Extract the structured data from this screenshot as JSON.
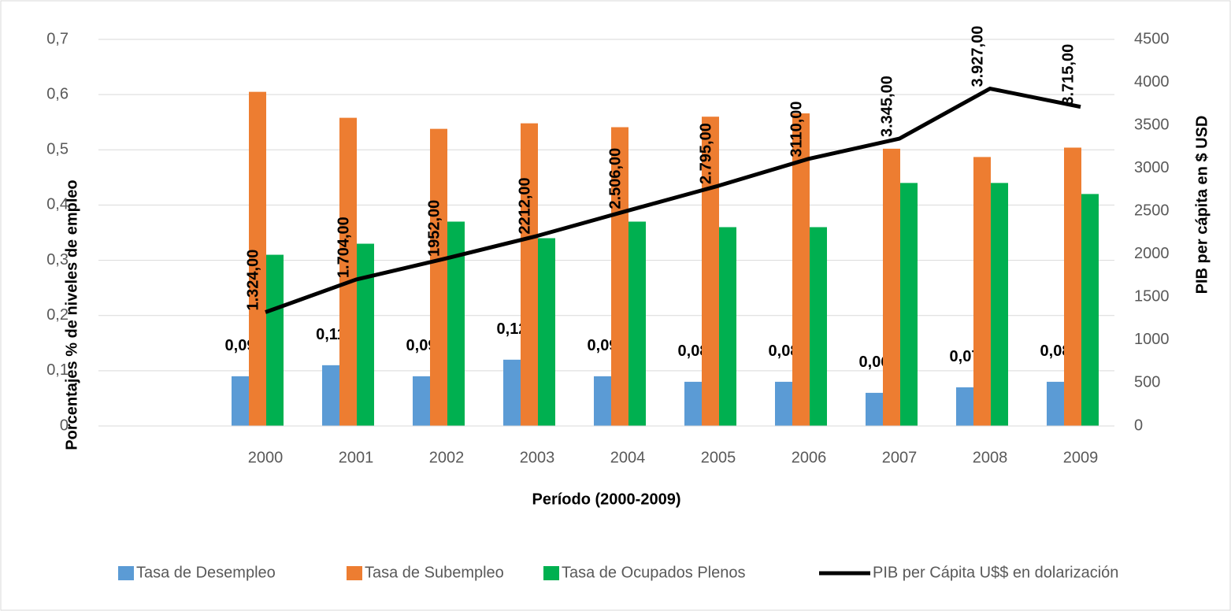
{
  "chart_data": {
    "type": "bar",
    "categories": [
      null,
      "2000",
      "2001",
      "2002",
      "2003",
      "2004",
      "2005",
      "2006",
      "2007",
      "2008",
      "2009"
    ],
    "xlabel": "Período (2000-2009)",
    "ylabel": "Porcentajes % de niveles de empleo",
    "y2label": "PIB per cápita en $ USD",
    "ylim": [
      0,
      0.7
    ],
    "yticks": [
      0,
      {
        "value": 0.1,
        "label": "0,1"
      },
      {
        "value": 0.2,
        "label": "0,2"
      },
      {
        "value": 0.3,
        "label": "0,3"
      },
      {
        "value": 0.4,
        "label": "0,4"
      },
      {
        "value": 0.5,
        "label": "0,5"
      },
      {
        "value": 0.6,
        "label": "0,6"
      },
      {
        "value": 0.7,
        "label": "0,7"
      }
    ],
    "y2lim": [
      0,
      4500
    ],
    "y2ticks": [
      0,
      500,
      1000,
      1500,
      2000,
      2500,
      3000,
      3500,
      4000,
      4500
    ],
    "grid": true,
    "legend": "bottom",
    "series": [
      {
        "name": "Tasa de Desempleo",
        "color": "#5b9bd5",
        "type": "bar",
        "values": [
          null,
          0.09,
          0.11,
          0.09,
          0.12,
          0.09,
          0.08,
          0.08,
          0.06,
          0.07,
          0.08
        ],
        "value_labels": [
          null,
          "0,09",
          "0,11",
          "0,09",
          "0,12",
          "0,09",
          "0,08",
          "0,08",
          "0,06",
          "0,07",
          "0,08"
        ]
      },
      {
        "name": "Tasa de Subempleo",
        "color": "#ed7d31",
        "type": "bar",
        "values": [
          null,
          0.605,
          0.558,
          0.538,
          0.548,
          0.541,
          0.56,
          0.566,
          0.502,
          0.487,
          0.504
        ]
      },
      {
        "name": "Tasa de Ocupados Plenos",
        "color": "#00b050",
        "type": "bar",
        "values": [
          null,
          0.31,
          0.33,
          0.37,
          0.34,
          0.37,
          0.36,
          0.36,
          0.44,
          0.44,
          0.42
        ]
      },
      {
        "name": "PIB per Cápita U$$ en dolarización",
        "color": "#000000",
        "type": "line",
        "axis": "y2",
        "values": [
          null,
          1324,
          1704,
          1952,
          2212,
          2506,
          2795,
          3110,
          3345,
          3927,
          3715
        ],
        "value_labels": [
          null,
          "1.324,00",
          "1.704,00",
          "1952,00",
          "2212,00",
          "2.506,00",
          "2.795,00",
          "3110,00",
          "3.345,00",
          "3.927,00",
          "3.715,00"
        ]
      }
    ]
  }
}
